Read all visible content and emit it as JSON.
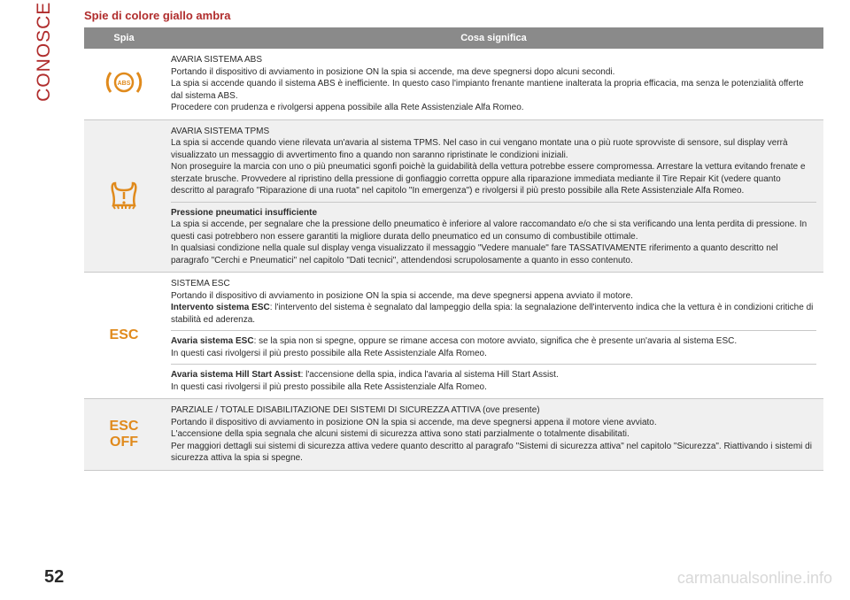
{
  "sidebar": {
    "label": "CONOSCENZA DEL QUADRO STRUMENTI",
    "color": "#b02c2c"
  },
  "section_title": "Spie di colore giallo ambra",
  "table": {
    "header_bg": "#8a8a8a",
    "header_color": "#ffffff",
    "row_alt_bg": "#f0f0f0",
    "border_color": "#c8c8c8",
    "columns": {
      "spia": "Spia",
      "cosa": "Cosa significa"
    },
    "icon_color": "#e08a1c",
    "rows": [
      {
        "icon": "abs",
        "parts": [
          {
            "title": "AVARIA SISTEMA ABS",
            "body": "Portando il dispositivo di avviamento in posizione ON la spia si accende, ma deve spegnersi dopo alcuni secondi.\nLa spia si accende quando il sistema ABS è inefficiente. In questo caso l'impianto frenante mantiene inalterata la propria efficacia, ma senza le potenzialità offerte dal sistema ABS.\nProcedere con prudenza e rivolgersi appena possibile alla Rete Assistenziale Alfa Romeo."
          }
        ]
      },
      {
        "icon": "tpms",
        "parts": [
          {
            "title": "AVARIA SISTEMA TPMS",
            "body": "La spia si accende quando viene rilevata un'avaria al sistema TPMS. Nel caso in cui vengano montate una o più ruote sprovviste di sensore, sul display verrà visualizzato un messaggio di avvertimento fino a quando non saranno ripristinate le condizioni iniziali.\nNon proseguire la marcia con uno o più pneumatici sgonfi poichè la guidabilità della vettura potrebbe essere compromessa. Arrestare la vettura evitando frenate e sterzate brusche. Provvedere al ripristino della pressione di gonfiaggio corretta oppure alla riparazione immediata mediante il Tire Repair Kit (vedere quanto descritto al paragrafo \"Riparazione di una ruota\" nel capitolo \"In emergenza\") e rivolgersi il più presto possibile alla Rete Assistenziale Alfa Romeo."
          },
          {
            "title_bold": "Pressione pneumatici insufficiente",
            "body": "La spia si accende, per segnalare che la pressione dello pneumatico è inferiore al valore raccomandato e/o che si sta verificando una lenta perdita di pressione. In questi casi potrebbero non essere garantiti la migliore durata dello pneumatico ed un consumo di combustibile ottimale.\nIn qualsiasi condizione nella quale sul display venga visualizzato il messaggio \"Vedere manuale\" fare TASSATIVAMENTE riferimento a quanto descritto nel paragrafo \"Cerchi e Pneumatici\" nel capitolo \"Dati tecnici\", attendendosi scrupolosamente a quanto in esso contenuto."
          }
        ]
      },
      {
        "icon": "esc",
        "icon_label": "ESC",
        "parts": [
          {
            "title": "SISTEMA ESC",
            "body": "Portando il dispositivo di avviamento in posizione ON la spia si accende, ma deve spegnersi appena avviato il motore.",
            "inline_bold": "Intervento sistema ESC",
            "inline_body": ": l'intervento del sistema è segnalato dal lampeggio della spia: la segnalazione dell'intervento indica che la vettura è in condizioni critiche di stabilità ed aderenza."
          },
          {
            "inline_bold": "Avaria sistema ESC",
            "inline_body": ": se la spia non si spegne, oppure se rimane accesa con motore avviato, significa che è presente un'avaria al sistema ESC.\nIn questi casi rivolgersi il più presto possibile alla Rete Assistenziale Alfa Romeo."
          },
          {
            "inline_bold": "Avaria sistema Hill Start Assist",
            "inline_body": ": l'accensione della spia, indica l'avaria al sistema Hill Start Assist.\nIn questi casi rivolgersi il più presto possibile alla Rete Assistenziale Alfa Romeo."
          }
        ]
      },
      {
        "icon": "esc_off",
        "icon_label": "ESC\nOFF",
        "parts": [
          {
            "title": "PARZIALE / TOTALE DISABILITAZIONE DEI SISTEMI DI SICUREZZA ATTIVA (ove presente)",
            "body": "Portando il dispositivo di avviamento in posizione ON la spia si accende, ma deve spegnersi appena il motore viene avviato.\nL'accensione della spia segnala che alcuni sistemi di sicurezza attiva sono stati parzialmente o totalmente disabilitati.\nPer maggiori dettagli sui sistemi di sicurezza attiva vedere quanto descritto al paragrafo \"Sistemi di sicurezza attiva\" nel capitolo \"Sicurezza\". Riattivando i sistemi di sicurezza attiva la spia si spegne."
          }
        ]
      }
    ]
  },
  "page_number": "52",
  "watermark": "carmanualsonline.info"
}
